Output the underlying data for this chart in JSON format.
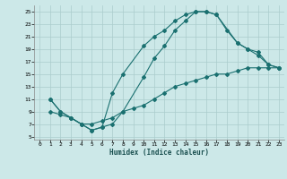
{
  "xlabel": "Humidex (Indice chaleur)",
  "bg_color": "#cce8e8",
  "grid_color": "#aacccc",
  "line_color": "#1a7070",
  "xlim": [
    -0.5,
    23.5
  ],
  "ylim": [
    4.5,
    26
  ],
  "xticks": [
    0,
    1,
    2,
    3,
    4,
    5,
    6,
    7,
    8,
    9,
    10,
    11,
    12,
    13,
    14,
    15,
    16,
    17,
    18,
    19,
    20,
    21,
    22,
    23
  ],
  "yticks": [
    5,
    7,
    9,
    11,
    13,
    15,
    17,
    19,
    21,
    23,
    25
  ],
  "line1_x": [
    1,
    2,
    3,
    4,
    5,
    6,
    7,
    8,
    10,
    11,
    12,
    13,
    14,
    15,
    16,
    17,
    18,
    19,
    20,
    21,
    22,
    23
  ],
  "line1_y": [
    11,
    9,
    8,
    7,
    6,
    6.5,
    12,
    15,
    19.5,
    21,
    22,
    23.5,
    24.5,
    25,
    25,
    24.5,
    22,
    20,
    19,
    18,
    16.5,
    16
  ],
  "line2_x": [
    1,
    2,
    3,
    4,
    5,
    6,
    7,
    8,
    9,
    10,
    11,
    12,
    13,
    14,
    15,
    16,
    17,
    18,
    19,
    20,
    21,
    22,
    23
  ],
  "line2_y": [
    9,
    8.5,
    8,
    7,
    7,
    7.5,
    8,
    9,
    9.5,
    10,
    11,
    12,
    13,
    13.5,
    14,
    14.5,
    15,
    15,
    15.5,
    16,
    16,
    16,
    16
  ],
  "line3_x": [
    1,
    2,
    3,
    4,
    5,
    6,
    7,
    8,
    10,
    11,
    12,
    13,
    14,
    15,
    16,
    17,
    19,
    20,
    21,
    22,
    23
  ],
  "line3_y": [
    11,
    9,
    8,
    7,
    6,
    6.5,
    7,
    9,
    14.5,
    17.5,
    19.5,
    22,
    23.5,
    25,
    25,
    24.5,
    20,
    19,
    18.5,
    16.5,
    16
  ]
}
